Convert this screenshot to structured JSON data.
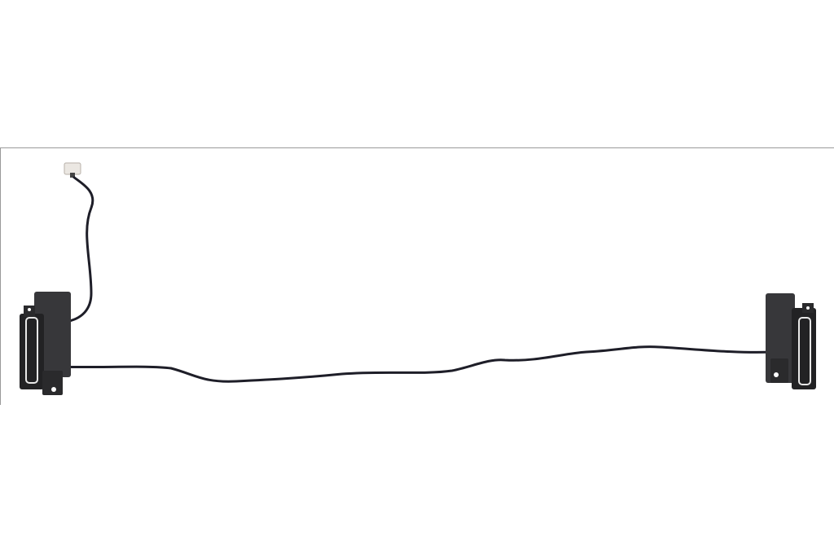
{
  "image": {
    "subject": "laptop-speaker-pair-with-cable",
    "colors": {
      "background": "#ffffff",
      "speaker_body": "#2a2a2c",
      "cable": "#1e1e28",
      "connector": "#e8e4e0",
      "frame_line": "#9a9a9a"
    }
  }
}
